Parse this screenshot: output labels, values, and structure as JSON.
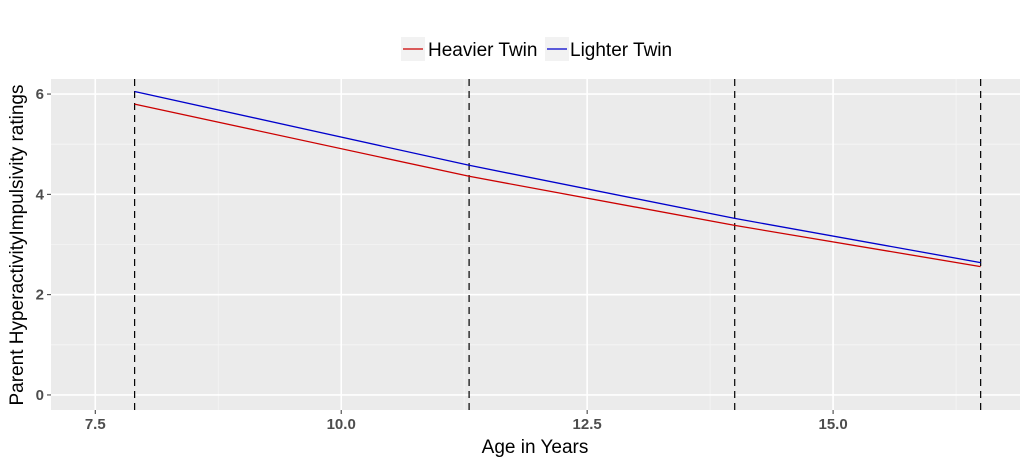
{
  "chart_data": {
    "type": "line",
    "title": "",
    "xlabel": "Age in Years",
    "ylabel": "Parent HyperactivityImpulsivity ratings",
    "xlim": [
      7.05,
      16.9
    ],
    "ylim": [
      -0.3,
      6.3
    ],
    "x_ticks": [
      7.5,
      10.0,
      12.5,
      15.0
    ],
    "x_tick_labels": [
      "7.5",
      "10.0",
      "12.5",
      "15.0"
    ],
    "y_ticks": [
      0,
      2,
      4,
      6
    ],
    "y_tick_labels": [
      "0",
      "2",
      "4",
      "6"
    ],
    "grid": true,
    "legend_position": "top",
    "vlines": [
      7.9,
      11.3,
      14.0,
      16.5
    ],
    "series": [
      {
        "name": "Heavier Twin",
        "color": "#cc0000",
        "x": [
          7.9,
          11.3,
          14.0,
          16.5
        ],
        "y": [
          5.8,
          4.36,
          3.38,
          2.56
        ]
      },
      {
        "name": "Lighter Twin",
        "color": "#0000cc",
        "x": [
          7.9,
          11.3,
          14.0,
          16.5
        ],
        "y": [
          6.05,
          4.58,
          3.52,
          2.64
        ]
      }
    ]
  }
}
